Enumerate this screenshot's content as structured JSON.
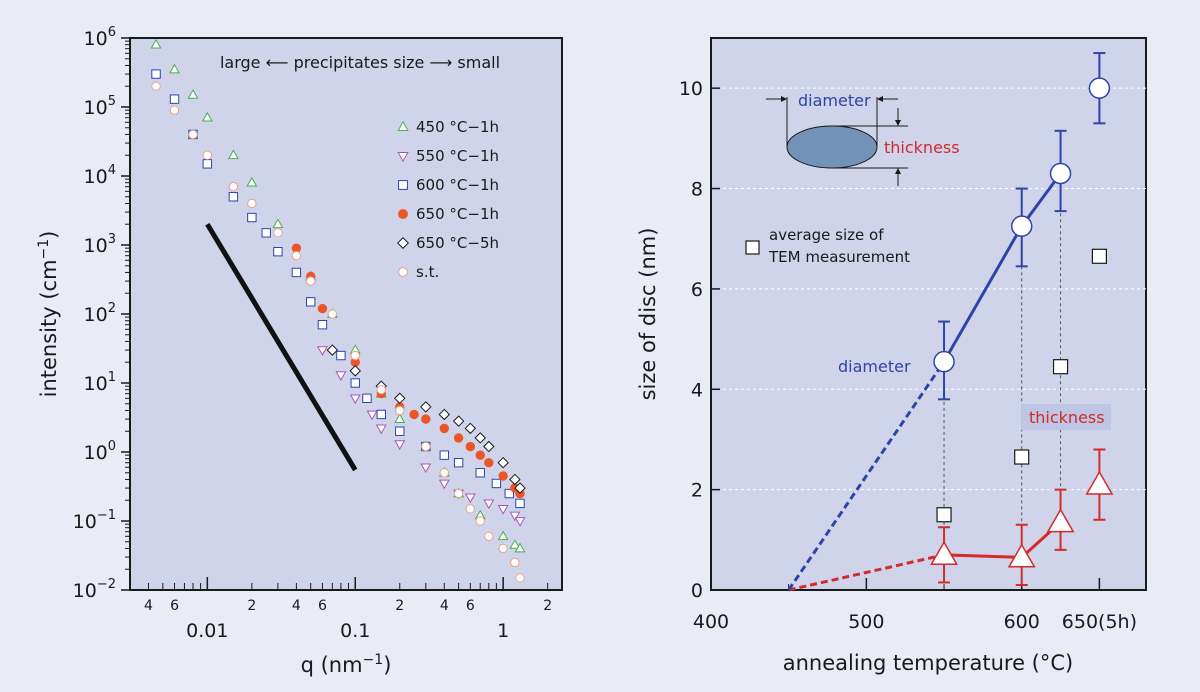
{
  "chart_data": [
    {
      "type": "scatter",
      "xlabel": "q (nm",
      "xlabel_sup": "−1",
      "xlabel_end": ")",
      "ylabel": "intensity (cm",
      "ylabel_sup": "−1",
      "ylabel_end": ")",
      "x_scale": "log",
      "y_scale": "log",
      "xlim": [
        0.003,
        2.5
      ],
      "ylim": [
        0.01,
        1000000
      ],
      "x_major_ticks": [
        {
          "value": 0.01,
          "label": "0.01"
        },
        {
          "value": 0.1,
          "label": "0.1"
        },
        {
          "value": 1,
          "label": "1"
        }
      ],
      "x_minor_labels": [
        {
          "value": 0.004,
          "label": "4"
        },
        {
          "value": 0.006,
          "label": "6"
        },
        {
          "value": 0.02,
          "label": "2"
        },
        {
          "value": 0.04,
          "label": "4"
        },
        {
          "value": 0.06,
          "label": "6"
        },
        {
          "value": 0.2,
          "label": "2"
        },
        {
          "value": 0.4,
          "label": "4"
        },
        {
          "value": 0.6,
          "label": "6"
        },
        {
          "value": 2,
          "label": "2"
        }
      ],
      "y_ticks": [
        {
          "value": 0.01,
          "base": "10",
          "exp": "−2"
        },
        {
          "value": 0.1,
          "base": "10",
          "exp": "−1"
        },
        {
          "value": 1,
          "base": "10",
          "exp": "0"
        },
        {
          "value": 10,
          "base": "10",
          "exp": "1"
        },
        {
          "value": 100,
          "base": "10",
          "exp": "2"
        },
        {
          "value": 1000,
          "base": "10",
          "exp": "3"
        },
        {
          "value": 10000,
          "base": "10",
          "exp": "4"
        },
        {
          "value": 100000,
          "base": "10",
          "exp": "5"
        },
        {
          "value": 1000000,
          "base": "10",
          "exp": "6"
        }
      ],
      "annotation": "large ⟵ precipitates size ⟶ small",
      "legend_position": "right",
      "reference_line": {
        "x": [
          0.01,
          0.1
        ],
        "y": [
          2000,
          0.55
        ]
      },
      "series": [
        {
          "name": "450 °C−1h",
          "marker": "triangle-up",
          "color": "#43b04a",
          "filled": false,
          "points": [
            [
              0.0045,
              800000
            ],
            [
              0.006,
              350000
            ],
            [
              0.008,
              150000
            ],
            [
              0.01,
              70000
            ],
            [
              0.015,
              20000
            ],
            [
              0.02,
              8000
            ],
            [
              0.03,
              2000
            ],
            [
              0.05,
              350
            ],
            [
              0.07,
              100
            ],
            [
              0.1,
              30
            ],
            [
              0.15,
              7
            ],
            [
              0.2,
              3
            ],
            [
              0.3,
              1.2
            ],
            [
              0.4,
              0.5
            ],
            [
              0.5,
              0.25
            ],
            [
              0.7,
              0.12
            ],
            [
              1,
              0.06
            ],
            [
              1.2,
              0.045
            ],
            [
              1.3,
              0.04
            ]
          ]
        },
        {
          "name": "550 °C−1h",
          "marker": "triangle-down",
          "color": "#a855b8",
          "filled": false,
          "points": [
            [
              0.06,
              30
            ],
            [
              0.08,
              13
            ],
            [
              0.1,
              6
            ],
            [
              0.13,
              3.5
            ],
            [
              0.15,
              2.2
            ],
            [
              0.2,
              1.3
            ],
            [
              0.3,
              0.6
            ],
            [
              0.4,
              0.35
            ],
            [
              0.5,
              0.25
            ],
            [
              0.6,
              0.22
            ],
            [
              0.8,
              0.18
            ],
            [
              1,
              0.15
            ],
            [
              1.2,
              0.12
            ],
            [
              1.3,
              0.1
            ]
          ]
        },
        {
          "name": "600 °C−1h",
          "marker": "square",
          "color": "#2c45a8",
          "filled": false,
          "points": [
            [
              0.0045,
              300000
            ],
            [
              0.006,
              130000
            ],
            [
              0.008,
              40000
            ],
            [
              0.01,
              15000
            ],
            [
              0.015,
              5000
            ],
            [
              0.02,
              2500
            ],
            [
              0.025,
              1500
            ],
            [
              0.03,
              800
            ],
            [
              0.04,
              400
            ],
            [
              0.05,
              150
            ],
            [
              0.06,
              70
            ],
            [
              0.08,
              25
            ],
            [
              0.1,
              10
            ],
            [
              0.12,
              6
            ],
            [
              0.15,
              3.5
            ],
            [
              0.2,
              2
            ],
            [
              0.3,
              1.2
            ],
            [
              0.4,
              0.9
            ],
            [
              0.5,
              0.7
            ],
            [
              0.7,
              0.5
            ],
            [
              0.9,
              0.35
            ],
            [
              1.1,
              0.25
            ],
            [
              1.3,
              0.18
            ]
          ]
        },
        {
          "name": "650 °C−1h",
          "marker": "circle",
          "color": "#ec5525",
          "filled": true,
          "points": [
            [
              0.04,
              900
            ],
            [
              0.05,
              350
            ],
            [
              0.06,
              120
            ],
            [
              0.1,
              20
            ],
            [
              0.15,
              7
            ],
            [
              0.2,
              4.5
            ],
            [
              0.25,
              3.5
            ],
            [
              0.3,
              3
            ],
            [
              0.4,
              2.2
            ],
            [
              0.5,
              1.6
            ],
            [
              0.6,
              1.2
            ],
            [
              0.7,
              0.9
            ],
            [
              0.8,
              0.7
            ],
            [
              1,
              0.45
            ],
            [
              1.2,
              0.3
            ],
            [
              1.3,
              0.25
            ]
          ]
        },
        {
          "name": "650 °C−5h",
          "marker": "diamond",
          "color": "#1a1a1a",
          "filled": false,
          "points": [
            [
              0.07,
              30
            ],
            [
              0.1,
              15
            ],
            [
              0.15,
              9
            ],
            [
              0.2,
              6
            ],
            [
              0.3,
              4.5
            ],
            [
              0.4,
              3.5
            ],
            [
              0.5,
              2.8
            ],
            [
              0.6,
              2.2
            ],
            [
              0.7,
              1.6
            ],
            [
              0.8,
              1.2
            ],
            [
              1,
              0.7
            ],
            [
              1.2,
              0.4
            ],
            [
              1.3,
              0.3
            ]
          ]
        },
        {
          "name": "s.t.",
          "marker": "circle",
          "color": "#e9a08a",
          "filled": false,
          "points": [
            [
              0.0045,
              200000
            ],
            [
              0.006,
              90000
            ],
            [
              0.008,
              40000
            ],
            [
              0.01,
              20000
            ],
            [
              0.015,
              7000
            ],
            [
              0.02,
              4000
            ],
            [
              0.03,
              1500
            ],
            [
              0.04,
              700
            ],
            [
              0.05,
              300
            ],
            [
              0.07,
              100
            ],
            [
              0.1,
              25
            ],
            [
              0.15,
              8
            ],
            [
              0.2,
              4
            ],
            [
              0.3,
              1.2
            ],
            [
              0.4,
              0.5
            ],
            [
              0.5,
              0.25
            ],
            [
              0.6,
              0.15
            ],
            [
              0.7,
              0.1
            ],
            [
              0.8,
              0.06
            ],
            [
              1,
              0.04
            ],
            [
              1.2,
              0.025
            ],
            [
              1.3,
              0.015
            ]
          ]
        }
      ]
    },
    {
      "type": "line",
      "xlabel": "annealing temperature (°C)",
      "ylabel": "size of disc (nm)",
      "xlim": [
        400,
        680
      ],
      "ylim": [
        0,
        11
      ],
      "grid": true,
      "x_ticks": [
        {
          "value": 400,
          "label": "400"
        },
        {
          "value": 500,
          "label": "500"
        },
        {
          "value": 600,
          "label": "600"
        },
        {
          "value": 650,
          "label": "650(5h)"
        }
      ],
      "x_minor_ticks": [
        450,
        550
      ],
      "y_ticks": [
        0,
        2,
        4,
        6,
        8,
        10
      ],
      "inset": {
        "diameter_label": "diameter",
        "thickness_label": "thickness"
      },
      "legend_label_1": "average size of",
      "legend_label_2": "TEM measurement",
      "diameter": {
        "name": "diameter",
        "color": "#2c45a8",
        "extrapolated": [
          [
            450,
            0
          ],
          [
            550,
            4.55
          ]
        ],
        "points": [
          [
            550,
            4.55
          ],
          [
            600,
            7.25
          ],
          [
            625,
            8.3
          ],
          [
            650,
            10.0
          ]
        ],
        "errors": [
          [
            3.8,
            5.35
          ],
          [
            6.45,
            8.0
          ],
          [
            7.55,
            9.15
          ],
          [
            9.3,
            10.7
          ]
        ],
        "line_points": [
          550,
          600,
          625
        ]
      },
      "thickness": {
        "name": "thickness",
        "color": "#d32a2a",
        "extrapolated": [
          [
            450,
            0
          ],
          [
            550,
            0.7
          ]
        ],
        "points": [
          [
            550,
            0.7
          ],
          [
            600,
            0.65
          ],
          [
            625,
            1.35
          ],
          [
            650,
            2.1
          ]
        ],
        "errors": [
          [
            0.15,
            1.25
          ],
          [
            0.1,
            1.3
          ],
          [
            0.8,
            2.0
          ],
          [
            1.4,
            2.8
          ]
        ],
        "line_points": [
          550,
          600,
          625
        ]
      },
      "tem": {
        "points": [
          [
            550,
            1.5
          ],
          [
            600,
            2.65
          ],
          [
            625,
            4.45
          ],
          [
            650,
            6.65
          ]
        ]
      }
    }
  ]
}
